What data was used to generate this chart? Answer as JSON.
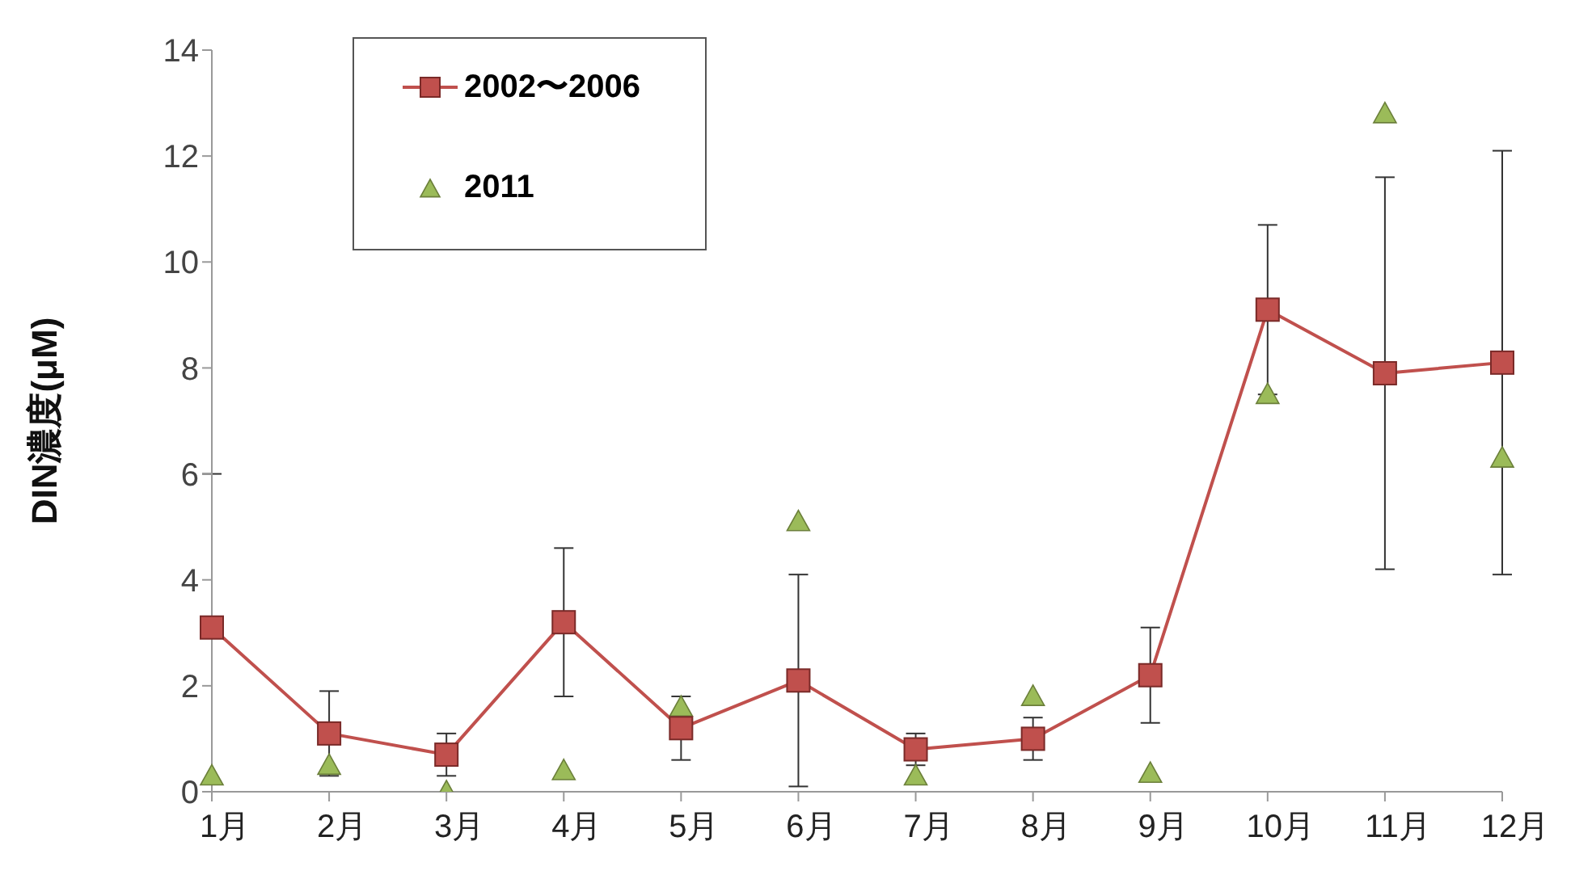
{
  "chart_data": {
    "type": "line",
    "ylabel": "DIN濃度(μM)",
    "categories": [
      "1月",
      "2月",
      "3月",
      "4月",
      "5月",
      "6月",
      "7月",
      "8月",
      "9月",
      "10月",
      "11月",
      "12月"
    ],
    "ylim": [
      0,
      14
    ],
    "yticks": [
      0,
      2,
      4,
      6,
      8,
      10,
      12,
      14
    ],
    "grid": false,
    "legend": "top left",
    "series": [
      {
        "name": "2002〜2006",
        "color": "#c0504d",
        "marker": "square",
        "values": [
          3.1,
          1.1,
          0.7,
          3.2,
          1.2,
          2.1,
          0.8,
          1.0,
          2.2,
          9.1,
          7.9,
          8.1
        ],
        "errors": [
          2.9,
          0.8,
          0.4,
          1.4,
          0.6,
          2.0,
          0.3,
          0.4,
          0.9,
          1.6,
          3.7,
          4.0
        ]
      },
      {
        "name": "2011",
        "type": "scatter",
        "color": "#9bbb59",
        "marker": "triangle",
        "values": [
          0.3,
          0.5,
          0.0,
          0.4,
          1.6,
          5.1,
          0.3,
          1.8,
          0.35,
          7.5,
          12.8,
          6.3
        ]
      }
    ]
  }
}
